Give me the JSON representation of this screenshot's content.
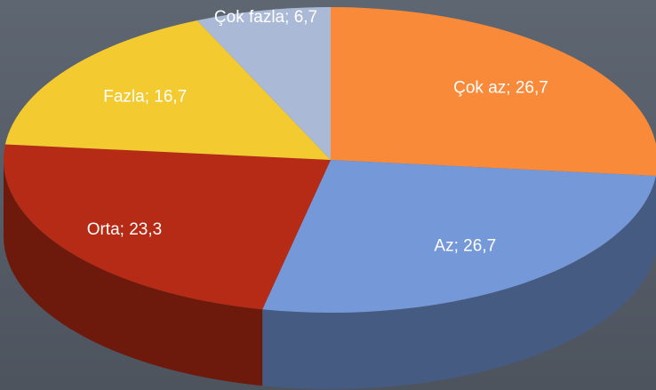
{
  "chart_data": {
    "type": "pie",
    "categories": [
      "Çok az",
      "Az",
      "Orta",
      "Fazla",
      "Çok fazla"
    ],
    "values": [
      26.7,
      26.7,
      23.3,
      16.7,
      6.7
    ],
    "value_labels": [
      "26,7",
      "26,7",
      "23,3",
      "16,7",
      "6,7"
    ],
    "label_separator": "; ",
    "colors": [
      "#f88a3a",
      "#7598d8",
      "#b62b15",
      "#f3ca2f",
      "#aab9d6"
    ]
  }
}
